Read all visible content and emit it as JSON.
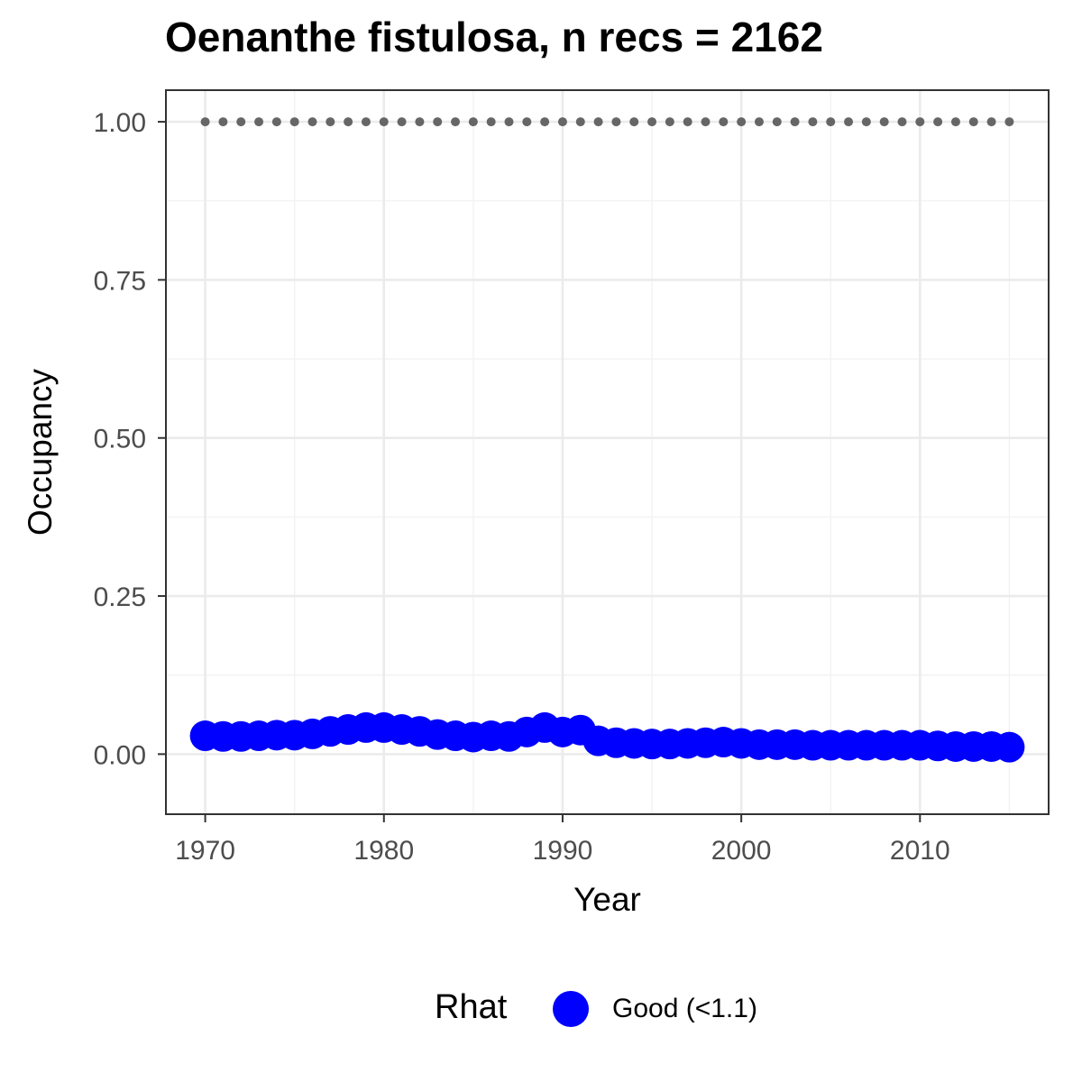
{
  "chart_data": {
    "type": "scatter",
    "title": "Oenanthe fistulosa, n recs = 2162",
    "xlabel": "Year",
    "ylabel": "Occupancy",
    "xlim": [
      1967.8,
      2017.2
    ],
    "ylim": [
      -0.095,
      1.05
    ],
    "x_ticks": [
      1970,
      1980,
      1990,
      2000,
      2010
    ],
    "x_tick_labels": [
      "1970",
      "1980",
      "1990",
      "2000",
      "2010"
    ],
    "y_ticks": [
      0,
      0.25,
      0.5,
      0.75,
      1.0
    ],
    "y_tick_labels": [
      "0.00",
      "0.25",
      "0.50",
      "0.75",
      "1.00"
    ],
    "grid": true,
    "legend": {
      "position": "bottom",
      "title": "Rhat",
      "entries": [
        {
          "label": "Good (<1.1)",
          "color": "#0000ff"
        }
      ]
    },
    "series": [
      {
        "name": "Good (<1.1)",
        "color": "#0000ff",
        "marker": "large-circle",
        "x": [
          1970,
          1971,
          1972,
          1973,
          1974,
          1975,
          1976,
          1977,
          1978,
          1979,
          1980,
          1981,
          1982,
          1983,
          1984,
          1985,
          1986,
          1987,
          1988,
          1989,
          1990,
          1991,
          1992,
          1993,
          1994,
          1995,
          1996,
          1997,
          1998,
          1999,
          2000,
          2001,
          2002,
          2003,
          2004,
          2005,
          2006,
          2007,
          2008,
          2009,
          2010,
          2011,
          2012,
          2013,
          2014,
          2015
        ],
        "y": [
          0.029,
          0.028,
          0.028,
          0.029,
          0.03,
          0.03,
          0.032,
          0.036,
          0.039,
          0.042,
          0.042,
          0.039,
          0.036,
          0.031,
          0.029,
          0.027,
          0.029,
          0.028,
          0.035,
          0.042,
          0.035,
          0.038,
          0.021,
          0.018,
          0.017,
          0.016,
          0.016,
          0.017,
          0.018,
          0.019,
          0.017,
          0.015,
          0.015,
          0.015,
          0.014,
          0.014,
          0.014,
          0.014,
          0.014,
          0.014,
          0.014,
          0.013,
          0.012,
          0.012,
          0.012,
          0.011
        ]
      },
      {
        "name": "",
        "color": "#666666",
        "marker": "small-dot",
        "x": [
          1970,
          1971,
          1972,
          1973,
          1974,
          1975,
          1976,
          1977,
          1978,
          1979,
          1980,
          1981,
          1982,
          1983,
          1984,
          1985,
          1986,
          1987,
          1988,
          1989,
          1990,
          1991,
          1992,
          1993,
          1994,
          1995,
          1996,
          1997,
          1998,
          1999,
          2000,
          2001,
          2002,
          2003,
          2004,
          2005,
          2006,
          2007,
          2008,
          2009,
          2010,
          2011,
          2012,
          2013,
          2014,
          2015
        ],
        "y": [
          1,
          1,
          1,
          1,
          1,
          1,
          1,
          1,
          1,
          1,
          1,
          1,
          1,
          1,
          1,
          1,
          1,
          1,
          1,
          1,
          1,
          1,
          1,
          1,
          1,
          1,
          1,
          1,
          1,
          1,
          1,
          1,
          1,
          1,
          1,
          1,
          1,
          1,
          1,
          1,
          1,
          1,
          1,
          1,
          1,
          1
        ]
      }
    ]
  },
  "colors": {
    "panel_border": "#333333",
    "grid_major": "#ebebeb",
    "grid_minor": "#f2f2f2",
    "tick_text": "#4d4d4d",
    "good": "#0000ff",
    "reference": "#666666"
  }
}
